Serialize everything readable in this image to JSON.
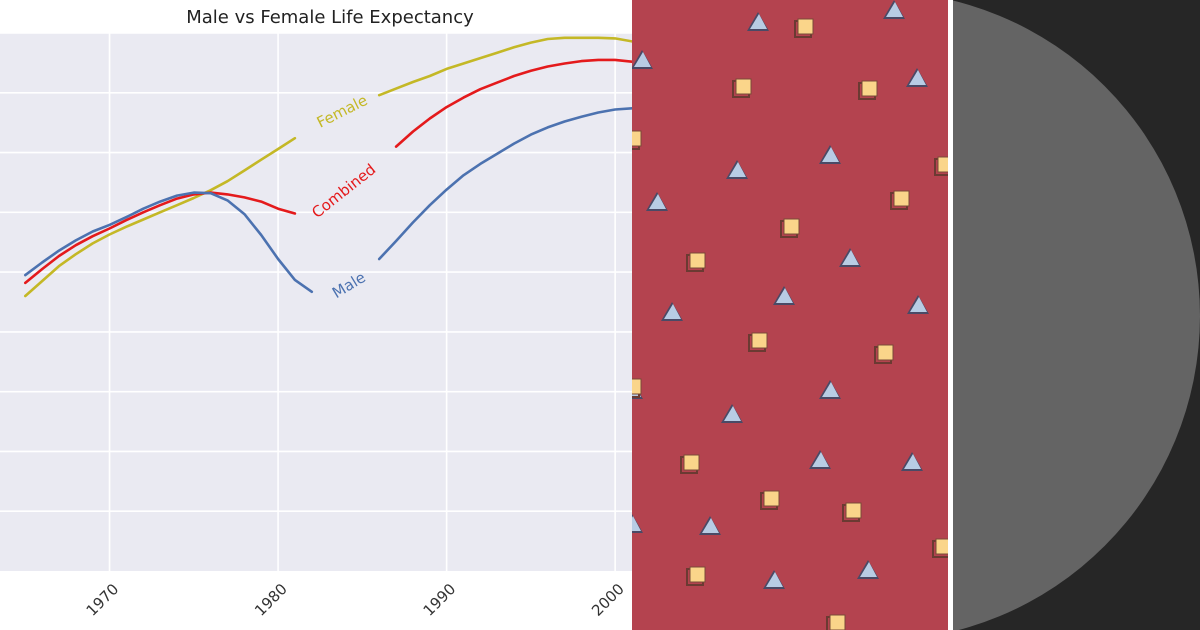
{
  "chart_data": {
    "type": "line",
    "title": "Male vs Female Life Expectancy",
    "xlabel": "",
    "ylabel": "",
    "x": [
      1965,
      1966,
      1967,
      1968,
      1969,
      1970,
      1971,
      1972,
      1973,
      1974,
      1975,
      1976,
      1977,
      1978,
      1979,
      1980,
      1981,
      1982,
      1983,
      1984,
      1985,
      1986,
      1987,
      1988,
      1989,
      1990,
      1991,
      1992,
      1993,
      1994,
      1995,
      1996,
      1997,
      1998,
      1999,
      2000,
      2001
    ],
    "xticks": [
      "1970",
      "1980",
      "1990",
      "2000"
    ],
    "xlim": [
      1963.5,
      2001
    ],
    "ylim": [
      0,
      9
    ],
    "grid": true,
    "series": [
      {
        "name": "Female",
        "color": "#c4b826",
        "label_at": 1983.8,
        "values": [
          4.6,
          4.85,
          5.1,
          5.3,
          5.48,
          5.63,
          5.76,
          5.88,
          6.0,
          6.12,
          6.24,
          6.37,
          6.52,
          6.7,
          6.88,
          7.06,
          7.24,
          7.41,
          7.57,
          7.72,
          7.85,
          7.96,
          8.07,
          8.18,
          8.28,
          8.4,
          8.49,
          8.58,
          8.67,
          8.76,
          8.84,
          8.9,
          8.92,
          8.92,
          8.92,
          8.91,
          8.86
        ]
      },
      {
        "name": "Combined",
        "color": "#e41a1c",
        "label_at": 1983.9,
        "values": [
          4.82,
          5.05,
          5.27,
          5.45,
          5.6,
          5.73,
          5.87,
          6.0,
          6.12,
          6.23,
          6.3,
          6.33,
          6.3,
          6.25,
          6.18,
          6.06,
          5.98,
          5.95,
          6.15,
          6.38,
          6.6,
          6.85,
          7.1,
          7.35,
          7.57,
          7.76,
          7.92,
          8.06,
          8.17,
          8.28,
          8.37,
          8.44,
          8.49,
          8.53,
          8.55,
          8.55,
          8.52
        ]
      },
      {
        "name": "Male",
        "color": "#4c72b0",
        "label_at": 1984.2,
        "values": [
          4.95,
          5.16,
          5.36,
          5.53,
          5.68,
          5.79,
          5.92,
          6.06,
          6.18,
          6.28,
          6.33,
          6.32,
          6.2,
          5.97,
          5.62,
          5.22,
          4.87,
          4.67,
          4.61,
          4.74,
          4.95,
          5.22,
          5.52,
          5.83,
          6.12,
          6.38,
          6.62,
          6.81,
          6.98,
          7.15,
          7.3,
          7.42,
          7.52,
          7.6,
          7.67,
          7.72,
          7.74
        ]
      }
    ]
  },
  "pattern": {
    "background_color": "#b4434f",
    "triangle_color": "#b8cce4",
    "square_color": "#fad58a"
  },
  "dark_panel": {
    "background_color": "#262626",
    "circle_color": "#646464"
  }
}
